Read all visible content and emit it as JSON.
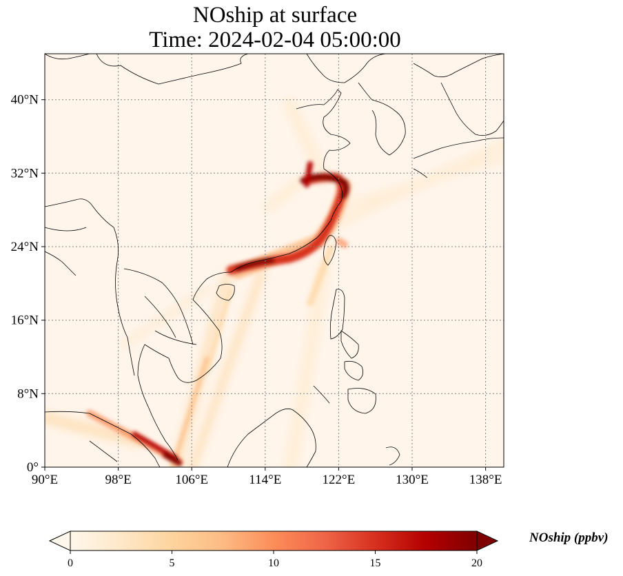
{
  "title": {
    "line1": "NOship at surface",
    "line2": "Time: 2024-02-04 05:00:00"
  },
  "map": {
    "projection": "PlateCarree",
    "extent": {
      "lon_min": 90,
      "lon_max": 140,
      "lat_min": 0,
      "lat_max": 45
    },
    "gridlines": {
      "style": "dotted",
      "color": "#808080"
    },
    "lon_ticks": [
      90,
      98,
      106,
      114,
      122,
      130,
      138
    ],
    "lon_tick_labels": [
      "90°E",
      "98°E",
      "106°E",
      "114°E",
      "122°E",
      "130°E",
      "138°E"
    ],
    "lat_ticks": [
      0,
      8,
      16,
      24,
      32,
      40
    ],
    "lat_tick_labels": [
      "0°",
      "8°N",
      "16°N",
      "24°N",
      "32°N",
      "40°N"
    ],
    "background_color": "#fff5eb",
    "coastline_color": "#000000"
  },
  "colorbar": {
    "label": "NOship (ppbv)",
    "vmin": 0,
    "vmax": 20,
    "ticks": [
      0,
      5,
      10,
      15,
      20
    ],
    "tick_labels": [
      "0",
      "5",
      "10",
      "15",
      "20"
    ],
    "extend": "both",
    "colormap": "OrRd",
    "colors": [
      "#fff7ec",
      "#fee8c8",
      "#fdd49e",
      "#fdbb84",
      "#fc8d59",
      "#ef6548",
      "#d7301f",
      "#b30000",
      "#7f0000"
    ]
  }
}
